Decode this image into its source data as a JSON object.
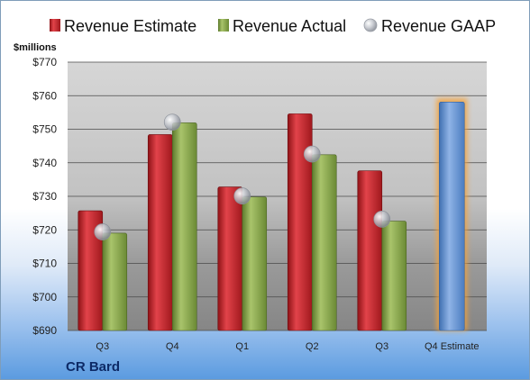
{
  "chart_data": {
    "type": "bar",
    "company": "CR Bard",
    "ylabel": "$millions",
    "ylim": [
      690,
      770
    ],
    "yticks": [
      690,
      700,
      710,
      720,
      730,
      740,
      750,
      760,
      770
    ],
    "ytick_labels": [
      "$690",
      "$700",
      "$710",
      "$720",
      "$730",
      "$740",
      "$750",
      "$760",
      "$770"
    ],
    "categories": [
      "Q3",
      "Q4",
      "Q1",
      "Q2",
      "Q3",
      "Q4 Estimate"
    ],
    "grid": true,
    "legend_position": "top",
    "series": [
      {
        "name": "Revenue Estimate",
        "color": "#c0262c",
        "values": [
          725.7,
          748.4,
          732.8,
          754.6,
          737.6,
          null
        ]
      },
      {
        "name": "Revenue Actual",
        "color": "#86a44a",
        "values": [
          719.0,
          751.9,
          729.8,
          742.4,
          722.6,
          null
        ]
      },
      {
        "name": "Revenue GAAP",
        "color": "#b9bec8",
        "values": [
          719.4,
          752.1,
          730.1,
          742.6,
          723.2,
          null
        ]
      },
      {
        "name": "",
        "color": "#6a96d0",
        "values": [
          null,
          null,
          null,
          null,
          null,
          758.1
        ]
      }
    ]
  }
}
